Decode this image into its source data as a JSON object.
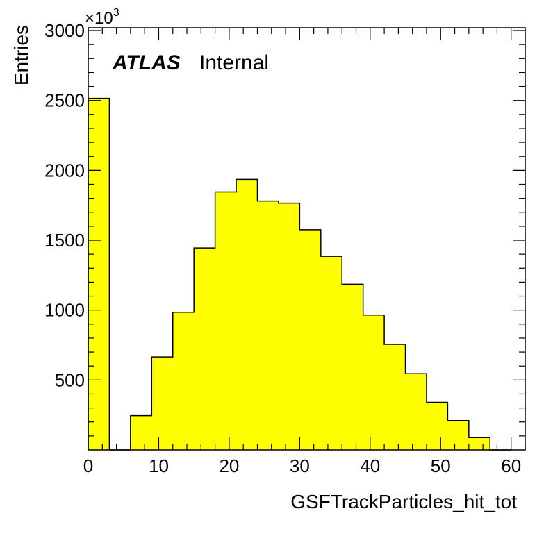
{
  "chart_data": {
    "type": "bar",
    "histogram": true,
    "bin_edges": [
      0,
      3,
      6,
      9,
      12,
      15,
      18,
      21,
      24,
      27,
      30,
      33,
      36,
      39,
      42,
      45,
      48,
      51,
      54,
      57,
      60
    ],
    "values": [
      2515,
      0,
      245,
      665,
      985,
      1445,
      1845,
      1935,
      1780,
      1765,
      1575,
      1385,
      1185,
      965,
      755,
      545,
      340,
      210,
      88,
      0
    ],
    "xlabel": "GSFTrackParticles_hit_tot",
    "ylabel": "Entries",
    "y_multiplier": "×10",
    "y_multiplier_exponent": "3",
    "xlim": [
      0,
      62
    ],
    "ylim": [
      0,
      3020
    ],
    "x_ticks": [
      0,
      10,
      20,
      30,
      40,
      50,
      60
    ],
    "x_tick_labels": [
      "0",
      "10",
      "20",
      "30",
      "40",
      "50",
      "60"
    ],
    "y_ticks": [
      500,
      1000,
      1500,
      2000,
      2500,
      3000
    ],
    "y_tick_labels": [
      "500",
      "1000",
      "1500",
      "2000",
      "2500",
      "3000"
    ],
    "fill_color": "#ffff00",
    "line_color": "#000000",
    "grid": false,
    "annotation": {
      "bold": "ATLAS",
      "normal": "Internal"
    }
  }
}
